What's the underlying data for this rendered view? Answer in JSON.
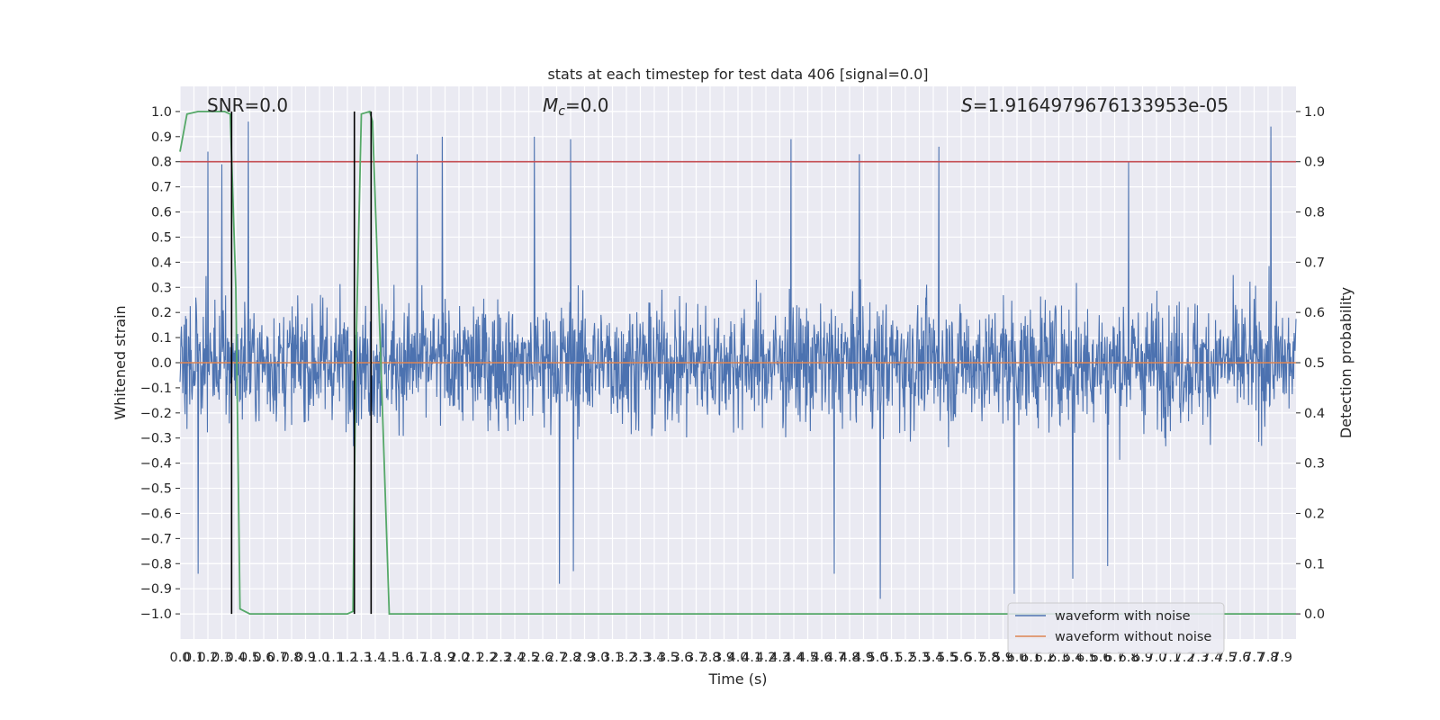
{
  "chart_data": {
    "type": "line",
    "title": "stats at each timestep for test data 406 [signal=0.0]",
    "xlabel": "Time (s)",
    "ylabel": "Whitened strain",
    "y2label": "Detection probability",
    "xlim": [
      0.0,
      8.0
    ],
    "ylim": [
      -1.1,
      1.1
    ],
    "y2lim": [
      -0.05,
      1.05
    ],
    "x_ticks": [
      "0.0",
      "0.1",
      "0.2",
      "0.3",
      "0.4",
      "0.5",
      "0.6",
      "0.7",
      "0.8",
      "0.9",
      "1.0",
      "1.1",
      "1.2",
      "1.3",
      "1.4",
      "1.5",
      "1.6",
      "1.7",
      "1.8",
      "1.9",
      "2.0",
      "2.1",
      "2.2",
      "2.3",
      "2.4",
      "2.5",
      "2.6",
      "2.7",
      "2.8",
      "2.9",
      "3.0",
      "3.1",
      "3.2",
      "3.3",
      "3.4",
      "3.5",
      "3.6",
      "3.7",
      "3.8",
      "3.9",
      "4.0",
      "4.1",
      "4.2",
      "4.3",
      "4.4",
      "4.5",
      "4.6",
      "4.7",
      "4.8",
      "4.9",
      "5.0",
      "5.1",
      "5.2",
      "5.3",
      "5.4",
      "5.5",
      "5.6",
      "5.7",
      "5.8",
      "5.9",
      "6.0",
      "6.1",
      "6.2",
      "6.3",
      "6.4",
      "6.5",
      "6.6",
      "6.7",
      "6.8",
      "6.9",
      "7.0",
      "7.1",
      "7.2",
      "7.3",
      "7.4",
      "7.5",
      "7.6",
      "7.7",
      "7.8",
      "7.9"
    ],
    "y_ticks": [
      "1.0",
      "0.9",
      "0.8",
      "0.7",
      "0.6",
      "0.5",
      "0.4",
      "0.3",
      "0.2",
      "0.1",
      "0.0",
      "-0.1",
      "-0.2",
      "-0.3",
      "-0.4",
      "-0.5",
      "-0.6",
      "-0.7",
      "-0.8",
      "-0.9",
      "-1.0"
    ],
    "y2_ticks": [
      "1.0",
      "0.9",
      "0.8",
      "0.7",
      "0.6",
      "0.5",
      "0.4",
      "0.3",
      "0.2",
      "0.1",
      "0.0"
    ],
    "grid": true,
    "legend_position": "lower-right",
    "annotations": {
      "snr": "SNR=0.0",
      "mc_symbol": "M",
      "mc_sub": "c",
      "mc_value": "=0.0",
      "s_symbol": "S",
      "s_value": "=1.9164979676133953e-05"
    },
    "threshold": 0.9,
    "vertical_lines_x": [
      0.37,
      1.25,
      1.37
    ],
    "noisy_waveform": {
      "name": "waveform with noise",
      "color": "#4c72b0",
      "duration_s": 8.0,
      "envelope": 0.45,
      "peak_points": [
        {
          "x": 0.13,
          "y": -0.84
        },
        {
          "x": 0.2,
          "y": 0.84
        },
        {
          "x": 0.3,
          "y": 0.79
        },
        {
          "x": 0.49,
          "y": 0.96
        },
        {
          "x": 1.7,
          "y": 0.83
        },
        {
          "x": 1.88,
          "y": 0.9
        },
        {
          "x": 2.54,
          "y": 0.9
        },
        {
          "x": 2.72,
          "y": -0.88
        },
        {
          "x": 2.8,
          "y": 0.89
        },
        {
          "x": 2.82,
          "y": -0.83
        },
        {
          "x": 4.38,
          "y": 0.89
        },
        {
          "x": 4.69,
          "y": -0.84
        },
        {
          "x": 4.87,
          "y": 0.83
        },
        {
          "x": 5.02,
          "y": -0.94
        },
        {
          "x": 5.44,
          "y": 0.86
        },
        {
          "x": 5.98,
          "y": -0.92
        },
        {
          "x": 6.4,
          "y": -0.86
        },
        {
          "x": 6.65,
          "y": -0.81
        },
        {
          "x": 6.8,
          "y": 0.8
        },
        {
          "x": 7.82,
          "y": 0.94
        }
      ]
    },
    "clean_waveform": {
      "name": "waveform without noise",
      "color": "#dd8452",
      "value": 0.0
    },
    "probability": {
      "name": "detection probability",
      "color": "#55a868",
      "x": [
        0.0,
        0.05,
        0.13,
        0.25,
        0.32,
        0.36,
        0.4,
        0.43,
        0.5,
        1.15,
        1.2,
        1.24,
        1.26,
        1.3,
        1.36,
        1.38,
        1.44,
        1.5,
        8.0
      ],
      "y": [
        0.92,
        0.995,
        1.0,
        1.0,
        1.0,
        0.995,
        0.65,
        0.01,
        0.0,
        0.0,
        0.0,
        0.005,
        0.5,
        0.995,
        1.0,
        0.98,
        0.5,
        0.0,
        0.0
      ]
    },
    "threshold_line": {
      "color": "#c44e52"
    }
  }
}
